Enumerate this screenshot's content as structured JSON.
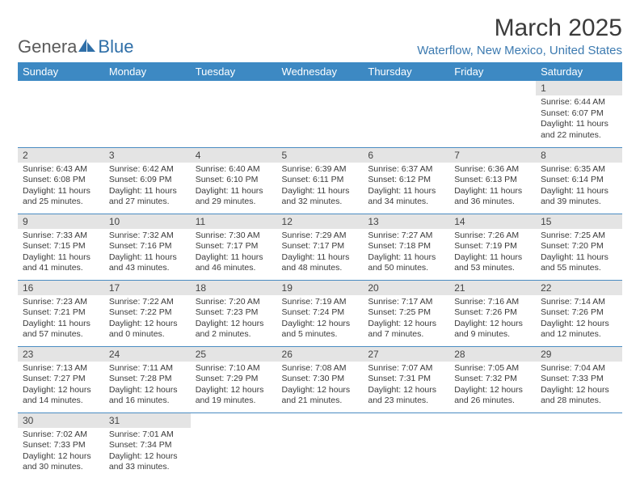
{
  "logo": {
    "text1": "Genera",
    "text2": "Blue"
  },
  "header": {
    "month_title": "March 2025",
    "location": "Waterflow, New Mexico, United States"
  },
  "colors": {
    "header_blue": "#3d89c3",
    "location_blue": "#3c7ab0",
    "row_divider": "#4a8cc2",
    "daynum_bg": "#e4e4e4",
    "text": "#3a3a3a",
    "logo_gray": "#5a5a5a"
  },
  "day_headers": [
    "Sunday",
    "Monday",
    "Tuesday",
    "Wednesday",
    "Thursday",
    "Friday",
    "Saturday"
  ],
  "weeks": [
    [
      null,
      null,
      null,
      null,
      null,
      null,
      {
        "n": "1",
        "sr": "Sunrise: 6:44 AM",
        "ss": "Sunset: 6:07 PM",
        "dl": "Daylight: 11 hours and 22 minutes."
      }
    ],
    [
      {
        "n": "2",
        "sr": "Sunrise: 6:43 AM",
        "ss": "Sunset: 6:08 PM",
        "dl": "Daylight: 11 hours and 25 minutes."
      },
      {
        "n": "3",
        "sr": "Sunrise: 6:42 AM",
        "ss": "Sunset: 6:09 PM",
        "dl": "Daylight: 11 hours and 27 minutes."
      },
      {
        "n": "4",
        "sr": "Sunrise: 6:40 AM",
        "ss": "Sunset: 6:10 PM",
        "dl": "Daylight: 11 hours and 29 minutes."
      },
      {
        "n": "5",
        "sr": "Sunrise: 6:39 AM",
        "ss": "Sunset: 6:11 PM",
        "dl": "Daylight: 11 hours and 32 minutes."
      },
      {
        "n": "6",
        "sr": "Sunrise: 6:37 AM",
        "ss": "Sunset: 6:12 PM",
        "dl": "Daylight: 11 hours and 34 minutes."
      },
      {
        "n": "7",
        "sr": "Sunrise: 6:36 AM",
        "ss": "Sunset: 6:13 PM",
        "dl": "Daylight: 11 hours and 36 minutes."
      },
      {
        "n": "8",
        "sr": "Sunrise: 6:35 AM",
        "ss": "Sunset: 6:14 PM",
        "dl": "Daylight: 11 hours and 39 minutes."
      }
    ],
    [
      {
        "n": "9",
        "sr": "Sunrise: 7:33 AM",
        "ss": "Sunset: 7:15 PM",
        "dl": "Daylight: 11 hours and 41 minutes."
      },
      {
        "n": "10",
        "sr": "Sunrise: 7:32 AM",
        "ss": "Sunset: 7:16 PM",
        "dl": "Daylight: 11 hours and 43 minutes."
      },
      {
        "n": "11",
        "sr": "Sunrise: 7:30 AM",
        "ss": "Sunset: 7:17 PM",
        "dl": "Daylight: 11 hours and 46 minutes."
      },
      {
        "n": "12",
        "sr": "Sunrise: 7:29 AM",
        "ss": "Sunset: 7:17 PM",
        "dl": "Daylight: 11 hours and 48 minutes."
      },
      {
        "n": "13",
        "sr": "Sunrise: 7:27 AM",
        "ss": "Sunset: 7:18 PM",
        "dl": "Daylight: 11 hours and 50 minutes."
      },
      {
        "n": "14",
        "sr": "Sunrise: 7:26 AM",
        "ss": "Sunset: 7:19 PM",
        "dl": "Daylight: 11 hours and 53 minutes."
      },
      {
        "n": "15",
        "sr": "Sunrise: 7:25 AM",
        "ss": "Sunset: 7:20 PM",
        "dl": "Daylight: 11 hours and 55 minutes."
      }
    ],
    [
      {
        "n": "16",
        "sr": "Sunrise: 7:23 AM",
        "ss": "Sunset: 7:21 PM",
        "dl": "Daylight: 11 hours and 57 minutes."
      },
      {
        "n": "17",
        "sr": "Sunrise: 7:22 AM",
        "ss": "Sunset: 7:22 PM",
        "dl": "Daylight: 12 hours and 0 minutes."
      },
      {
        "n": "18",
        "sr": "Sunrise: 7:20 AM",
        "ss": "Sunset: 7:23 PM",
        "dl": "Daylight: 12 hours and 2 minutes."
      },
      {
        "n": "19",
        "sr": "Sunrise: 7:19 AM",
        "ss": "Sunset: 7:24 PM",
        "dl": "Daylight: 12 hours and 5 minutes."
      },
      {
        "n": "20",
        "sr": "Sunrise: 7:17 AM",
        "ss": "Sunset: 7:25 PM",
        "dl": "Daylight: 12 hours and 7 minutes."
      },
      {
        "n": "21",
        "sr": "Sunrise: 7:16 AM",
        "ss": "Sunset: 7:26 PM",
        "dl": "Daylight: 12 hours and 9 minutes."
      },
      {
        "n": "22",
        "sr": "Sunrise: 7:14 AM",
        "ss": "Sunset: 7:26 PM",
        "dl": "Daylight: 12 hours and 12 minutes."
      }
    ],
    [
      {
        "n": "23",
        "sr": "Sunrise: 7:13 AM",
        "ss": "Sunset: 7:27 PM",
        "dl": "Daylight: 12 hours and 14 minutes."
      },
      {
        "n": "24",
        "sr": "Sunrise: 7:11 AM",
        "ss": "Sunset: 7:28 PM",
        "dl": "Daylight: 12 hours and 16 minutes."
      },
      {
        "n": "25",
        "sr": "Sunrise: 7:10 AM",
        "ss": "Sunset: 7:29 PM",
        "dl": "Daylight: 12 hours and 19 minutes."
      },
      {
        "n": "26",
        "sr": "Sunrise: 7:08 AM",
        "ss": "Sunset: 7:30 PM",
        "dl": "Daylight: 12 hours and 21 minutes."
      },
      {
        "n": "27",
        "sr": "Sunrise: 7:07 AM",
        "ss": "Sunset: 7:31 PM",
        "dl": "Daylight: 12 hours and 23 minutes."
      },
      {
        "n": "28",
        "sr": "Sunrise: 7:05 AM",
        "ss": "Sunset: 7:32 PM",
        "dl": "Daylight: 12 hours and 26 minutes."
      },
      {
        "n": "29",
        "sr": "Sunrise: 7:04 AM",
        "ss": "Sunset: 7:33 PM",
        "dl": "Daylight: 12 hours and 28 minutes."
      }
    ],
    [
      {
        "n": "30",
        "sr": "Sunrise: 7:02 AM",
        "ss": "Sunset: 7:33 PM",
        "dl": "Daylight: 12 hours and 30 minutes."
      },
      {
        "n": "31",
        "sr": "Sunrise: 7:01 AM",
        "ss": "Sunset: 7:34 PM",
        "dl": "Daylight: 12 hours and 33 minutes."
      },
      null,
      null,
      null,
      null,
      null
    ]
  ]
}
